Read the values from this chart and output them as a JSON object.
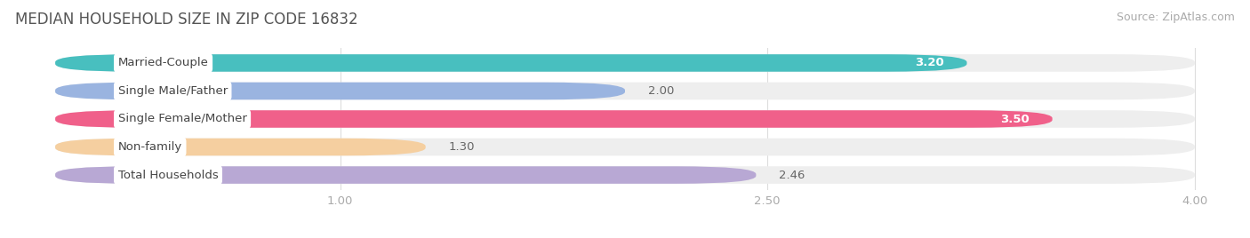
{
  "title": "MEDIAN HOUSEHOLD SIZE IN ZIP CODE 16832",
  "source": "Source: ZipAtlas.com",
  "categories": [
    "Married-Couple",
    "Single Male/Father",
    "Single Female/Mother",
    "Non-family",
    "Total Households"
  ],
  "values": [
    3.2,
    2.0,
    3.5,
    1.3,
    2.46
  ],
  "bar_colors": [
    "#48bfbf",
    "#9ab4e0",
    "#f0608a",
    "#f5cfa0",
    "#b8a8d4"
  ],
  "value_colors": [
    "white",
    "#888888",
    "white",
    "#888888",
    "#888888"
  ],
  "xlim_data": [
    0,
    4.0
  ],
  "xlim_display": [
    -0.15,
    4.15
  ],
  "xticks": [
    1.0,
    2.5,
    4.0
  ],
  "xtick_labels": [
    "1.00",
    "2.50",
    "4.00"
  ],
  "background_color": "#ffffff",
  "bar_bg_color": "#eeeeee",
  "title_fontsize": 12,
  "source_fontsize": 9,
  "label_fontsize": 9.5,
  "value_fontsize": 9.5
}
